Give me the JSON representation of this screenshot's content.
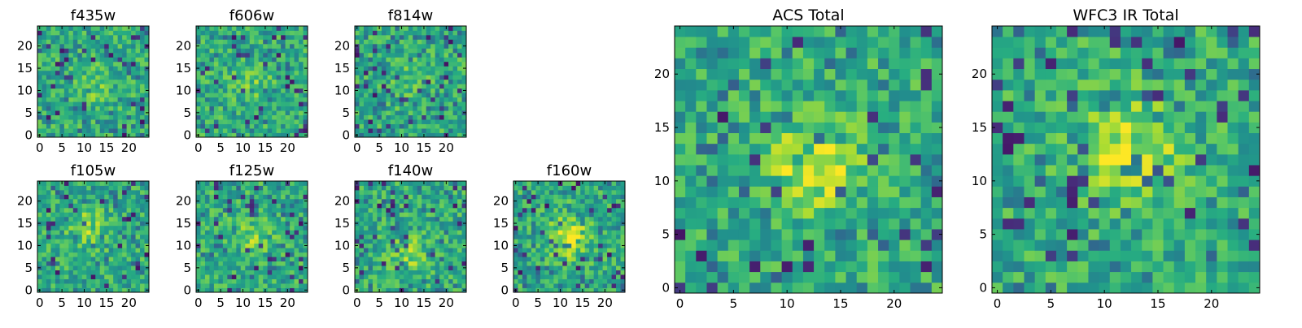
{
  "chart_data": [
    {
      "type": "heatmap",
      "title": "f435w",
      "xlabel": "",
      "ylabel": "",
      "xlim": [
        0,
        24
      ],
      "ylim": [
        0,
        24
      ],
      "xticks": [
        "0",
        "5",
        "10",
        "15",
        "20"
      ],
      "yticks": [
        "0",
        "5",
        "10",
        "15",
        "20"
      ],
      "colormap": "viridis",
      "grid_size": 25,
      "blob": {
        "cx": 12,
        "cy": 11,
        "strength": 0.12
      }
    },
    {
      "type": "heatmap",
      "title": "f606w",
      "xlabel": "",
      "ylabel": "",
      "xlim": [
        0,
        24
      ],
      "ylim": [
        0,
        24
      ],
      "xticks": [
        "0",
        "5",
        "10",
        "15",
        "20"
      ],
      "yticks": [
        "0",
        "5",
        "10",
        "15",
        "20"
      ],
      "colormap": "viridis",
      "grid_size": 25,
      "blob": {
        "cx": 12,
        "cy": 12,
        "strength": 0.12
      }
    },
    {
      "type": "heatmap",
      "title": "f814w",
      "xlabel": "",
      "ylabel": "",
      "xlim": [
        0,
        24
      ],
      "ylim": [
        0,
        24
      ],
      "xticks": [
        "0",
        "5",
        "10",
        "15",
        "20"
      ],
      "yticks": [
        "0",
        "5",
        "10",
        "15",
        "20"
      ],
      "colormap": "viridis",
      "grid_size": 25,
      "blob": {
        "cx": 12,
        "cy": 12,
        "strength": 0.1
      }
    },
    {
      "type": "heatmap",
      "title": "f105w",
      "xlabel": "",
      "ylabel": "",
      "xlim": [
        0,
        24
      ],
      "ylim": [
        0,
        24
      ],
      "xticks": [
        "0",
        "5",
        "10",
        "15",
        "20"
      ],
      "yticks": [
        "0",
        "5",
        "10",
        "15",
        "20"
      ],
      "colormap": "viridis",
      "grid_size": 25,
      "blob": {
        "cx": 11,
        "cy": 14,
        "strength": 0.2
      }
    },
    {
      "type": "heatmap",
      "title": "f125w",
      "xlabel": "",
      "ylabel": "",
      "xlim": [
        0,
        24
      ],
      "ylim": [
        0,
        24
      ],
      "xticks": [
        "0",
        "5",
        "10",
        "15",
        "20"
      ],
      "yticks": [
        "0",
        "5",
        "10",
        "15",
        "20"
      ],
      "colormap": "viridis",
      "grid_size": 25,
      "blob": {
        "cx": 12,
        "cy": 12,
        "strength": 0.2
      }
    },
    {
      "type": "heatmap",
      "title": "f140w",
      "xlabel": "",
      "ylabel": "",
      "xlim": [
        0,
        24
      ],
      "ylim": [
        0,
        24
      ],
      "xticks": [
        "0",
        "5",
        "10",
        "15",
        "20"
      ],
      "yticks": [
        "0",
        "5",
        "10",
        "15",
        "20"
      ],
      "colormap": "viridis",
      "grid_size": 25,
      "blob": {
        "cx": 12,
        "cy": 8,
        "strength": 0.2
      }
    },
    {
      "type": "heatmap",
      "title": "f160w",
      "xlabel": "",
      "ylabel": "",
      "xlim": [
        0,
        24
      ],
      "ylim": [
        0,
        24
      ],
      "xticks": [
        "0",
        "5",
        "10",
        "15",
        "20"
      ],
      "yticks": [
        "0",
        "5",
        "10",
        "15",
        "20"
      ],
      "colormap": "viridis",
      "grid_size": 25,
      "blob": {
        "cx": 12,
        "cy": 12,
        "strength": 0.35
      }
    },
    {
      "type": "heatmap",
      "title": "ACS Total",
      "xlabel": "",
      "ylabel": "",
      "xlim": [
        0,
        24
      ],
      "ylim": [
        0,
        24
      ],
      "xticks": [
        "0",
        "5",
        "10",
        "15",
        "20"
      ],
      "yticks": [
        "0",
        "5",
        "10",
        "15",
        "20"
      ],
      "colormap": "viridis",
      "grid_size": 25,
      "blob": {
        "cx": 12.5,
        "cy": 11.5,
        "strength": 0.3
      }
    },
    {
      "type": "heatmap",
      "title": "WFC3 IR Total",
      "xlabel": "",
      "ylabel": "",
      "xlim": [
        0,
        24
      ],
      "ylim": [
        0,
        24
      ],
      "xticks": [
        "0",
        "5",
        "10",
        "15",
        "20"
      ],
      "yticks": [
        "0",
        "5",
        "10",
        "15",
        "20"
      ],
      "colormap": "viridis",
      "grid_size": 25,
      "blob": {
        "cx": 12.5,
        "cy": 13,
        "strength": 0.35
      }
    }
  ],
  "colors": {
    "viridis_low": "#440154",
    "viridis_mid": "#21918c",
    "viridis_high": "#fde725"
  }
}
